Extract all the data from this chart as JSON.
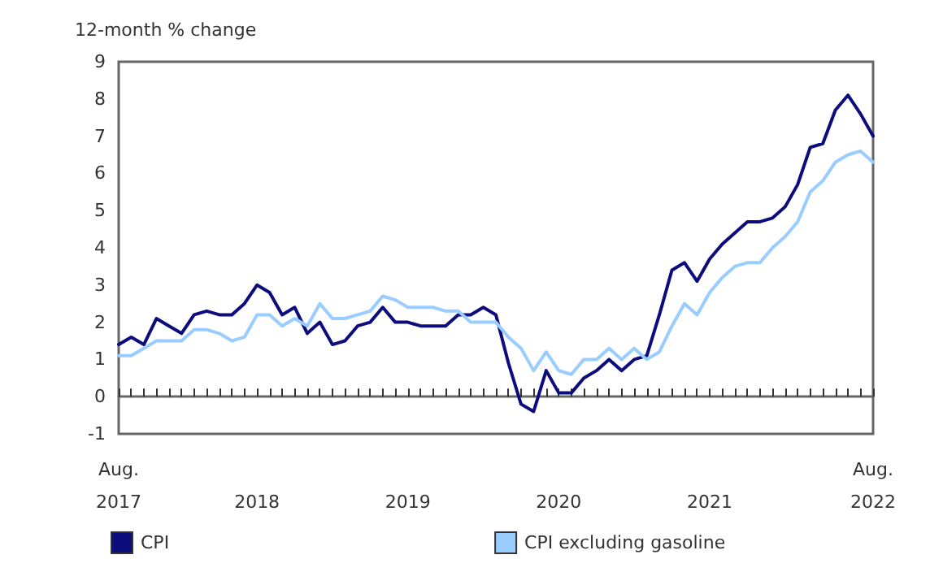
{
  "chart_data": {
    "type": "line",
    "ylabel": "12-month % change",
    "categories": [
      "Aug.\n2017",
      null,
      null,
      null,
      null,
      null,
      null,
      null,
      null,
      null,
      null,
      "2018",
      null,
      null,
      null,
      null,
      null,
      null,
      null,
      null,
      null,
      null,
      null,
      "2019",
      null,
      null,
      null,
      null,
      null,
      null,
      null,
      null,
      null,
      null,
      null,
      "2020",
      null,
      null,
      null,
      null,
      null,
      null,
      null,
      null,
      null,
      null,
      null,
      "2021",
      null,
      null,
      null,
      null,
      null,
      null,
      null,
      null,
      null,
      null,
      null,
      null,
      "Aug.\n2022"
    ],
    "series": [
      {
        "name": "CPI",
        "color": "#0c0c7c",
        "values": [
          1.4,
          1.6,
          1.4,
          2.1,
          1.9,
          1.7,
          2.2,
          2.3,
          2.2,
          2.2,
          2.5,
          3.0,
          2.8,
          2.2,
          2.4,
          1.7,
          2.0,
          1.4,
          1.5,
          1.9,
          2.0,
          2.4,
          2.0,
          2.0,
          1.9,
          1.9,
          1.9,
          2.2,
          2.2,
          2.4,
          2.2,
          0.9,
          -0.2,
          -0.4,
          0.7,
          0.1,
          0.1,
          0.5,
          0.7,
          1.0,
          0.7,
          1.0,
          1.1,
          2.2,
          3.4,
          3.6,
          3.1,
          3.7,
          4.1,
          4.4,
          4.7,
          4.7,
          4.8,
          5.1,
          5.7,
          6.7,
          6.8,
          7.7,
          8.1,
          7.6,
          7.0
        ]
      },
      {
        "name": "CPI excluding gasoline",
        "color": "#99ccff",
        "values": [
          1.1,
          1.1,
          1.3,
          1.5,
          1.5,
          1.5,
          1.8,
          1.8,
          1.7,
          1.5,
          1.6,
          2.2,
          2.2,
          1.9,
          2.1,
          1.9,
          2.5,
          2.1,
          2.1,
          2.2,
          2.3,
          2.7,
          2.6,
          2.4,
          2.4,
          2.4,
          2.3,
          2.3,
          2.0,
          2.0,
          2.0,
          1.6,
          1.3,
          0.7,
          1.2,
          0.7,
          0.6,
          1.0,
          1.0,
          1.3,
          1.0,
          1.3,
          1.0,
          1.2,
          1.9,
          2.5,
          2.2,
          2.8,
          3.2,
          3.5,
          3.6,
          3.6,
          4.0,
          4.3,
          4.7,
          5.5,
          5.8,
          6.3,
          6.5,
          6.6,
          6.3
        ]
      }
    ],
    "ylim": [
      -1,
      9
    ],
    "yticks": [
      -1,
      0,
      1,
      2,
      3,
      4,
      5,
      6,
      7,
      8,
      9
    ],
    "legend": "bottom",
    "marker": "none",
    "line_style": "solid"
  }
}
